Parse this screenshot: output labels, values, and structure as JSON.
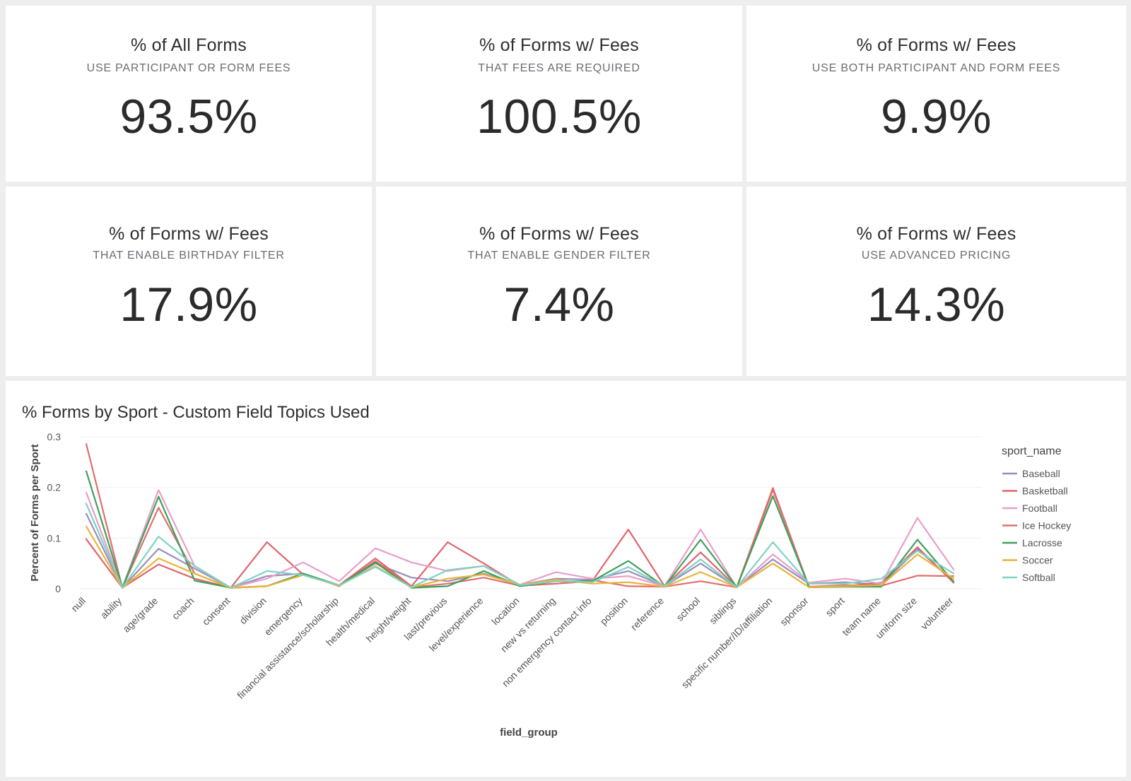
{
  "kpis": [
    {
      "title": "% of All Forms",
      "subtitle": "USE PARTICIPANT OR FORM FEES",
      "value": "93.5%"
    },
    {
      "title": "% of Forms w/ Fees",
      "subtitle": "THAT FEES ARE REQUIRED",
      "value": "100.5%"
    },
    {
      "title": "% of Forms w/ Fees",
      "subtitle": "USE BOTH PARTICIPANT AND FORM FEES",
      "value": "9.9%"
    },
    {
      "title": "% of Forms w/ Fees",
      "subtitle": "THAT ENABLE BIRTHDAY FILTER",
      "value": "17.9%"
    },
    {
      "title": "% of Forms w/ Fees",
      "subtitle": "THAT ENABLE GENDER FILTER",
      "value": "7.4%"
    },
    {
      "title": "% of Forms w/ Fees",
      "subtitle": "USE ADVANCED PRICING",
      "value": "14.3%"
    }
  ],
  "chart_data": {
    "type": "line",
    "title": "% Forms by Sport - Custom Field Topics Used",
    "xlabel": "field_group",
    "ylabel": "Percent of Forms per Sport",
    "ylim": [
      0,
      0.3
    ],
    "yticks": [
      "0",
      "0.1",
      "0.2",
      "0.3"
    ],
    "grid": true,
    "legend_title": "sport_name",
    "legend_position": "right",
    "categories": [
      "null",
      "ability",
      "age/grade",
      "coach",
      "consent",
      "division",
      "emergency",
      "financial assistance/scholarship",
      "health/medical",
      "height/weight",
      "last/previous",
      "level/experience",
      "location",
      "new vs returning",
      "non emergency contact info",
      "position",
      "reference",
      "school",
      "siblings",
      "specific number/ID/affiliation",
      "sponsor",
      "sport",
      "team name",
      "uniform size",
      "volunteer"
    ],
    "series": [
      {
        "name": "Baseball",
        "color": "#9b8dbd",
        "values": [
          0.148,
          0.002,
          0.079,
          0.04,
          0.002,
          0.025,
          0.03,
          0.007,
          0.05,
          0.022,
          0.015,
          0.03,
          0.008,
          0.02,
          0.018,
          0.035,
          0.005,
          0.05,
          0.003,
          0.058,
          0.01,
          0.013,
          0.008,
          0.078,
          0.015
        ]
      },
      {
        "name": "Basketball",
        "color": "#e0656a",
        "values": [
          0.098,
          0.002,
          0.048,
          0.02,
          0.002,
          0.092,
          0.028,
          0.007,
          0.06,
          0.005,
          0.092,
          0.05,
          0.006,
          0.01,
          0.015,
          0.117,
          0.005,
          0.072,
          0.003,
          0.199,
          0.003,
          0.005,
          0.012,
          0.082,
          0.012
        ]
      },
      {
        "name": "Football",
        "color": "#e89ecb",
        "values": [
          0.19,
          0.002,
          0.195,
          0.045,
          0.002,
          0.02,
          0.052,
          0.015,
          0.08,
          0.052,
          0.035,
          0.045,
          0.008,
          0.033,
          0.02,
          0.025,
          0.005,
          0.117,
          0.003,
          0.068,
          0.012,
          0.02,
          0.01,
          0.14,
          0.038
        ]
      },
      {
        "name": "Ice Hockey",
        "color": "#e26e6e",
        "values": [
          0.286,
          0.002,
          0.16,
          0.03,
          0.002,
          0.005,
          0.03,
          0.005,
          0.055,
          0.003,
          0.01,
          0.022,
          0.006,
          0.01,
          0.017,
          0.005,
          0.004,
          0.015,
          0.003,
          0.195,
          0.004,
          0.007,
          0.006,
          0.026,
          0.025
        ]
      },
      {
        "name": "Lacrosse",
        "color": "#3f9f5b",
        "values": [
          0.232,
          0.002,
          0.182,
          0.016,
          0.002,
          0.005,
          0.03,
          0.007,
          0.052,
          0.002,
          0.005,
          0.035,
          0.005,
          0.015,
          0.015,
          0.055,
          0.004,
          0.097,
          0.003,
          0.183,
          0.003,
          0.004,
          0.004,
          0.097,
          0.014
        ]
      },
      {
        "name": "Soccer",
        "color": "#e9b43a",
        "values": [
          0.123,
          0.002,
          0.06,
          0.03,
          0.002,
          0.005,
          0.027,
          0.006,
          0.045,
          0.003,
          0.02,
          0.028,
          0.008,
          0.018,
          0.01,
          0.013,
          0.004,
          0.033,
          0.003,
          0.05,
          0.003,
          0.005,
          0.007,
          0.068,
          0.02
        ]
      },
      {
        "name": "Softball",
        "color": "#7fd3c2",
        "values": [
          0.168,
          0.002,
          0.103,
          0.045,
          0.002,
          0.035,
          0.027,
          0.007,
          0.043,
          0.003,
          0.037,
          0.045,
          0.007,
          0.015,
          0.013,
          0.043,
          0.005,
          0.058,
          0.003,
          0.092,
          0.01,
          0.01,
          0.02,
          0.075,
          0.03
        ]
      }
    ]
  }
}
